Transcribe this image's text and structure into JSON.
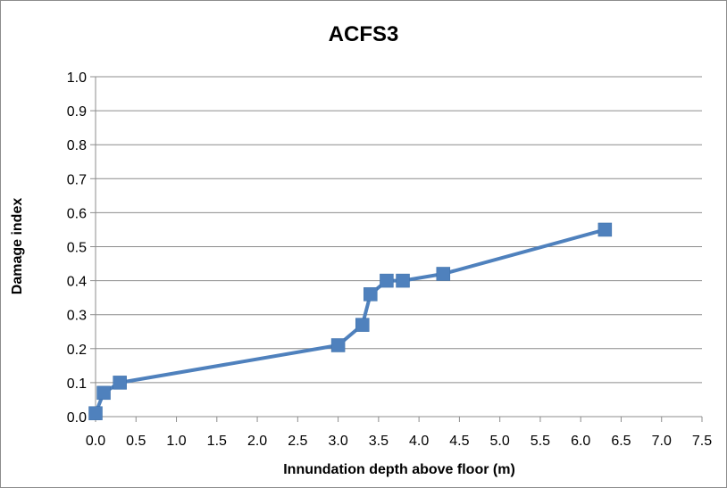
{
  "chart_data": {
    "type": "scatter",
    "title": "ACFS3",
    "xlabel": "Innundation depth above floor (m)",
    "ylabel": "Damage index",
    "xlim": [
      0,
      7.5
    ],
    "ylim": [
      0,
      1.0
    ],
    "x_ticks": [
      "0.0",
      "0.5",
      "1.0",
      "1.5",
      "2.0",
      "2.5",
      "3.0",
      "3.5",
      "4.0",
      "4.5",
      "5.0",
      "5.5",
      "6.0",
      "6.5",
      "7.0",
      "7.5"
    ],
    "y_ticks": [
      "0.0",
      "0.1",
      "0.2",
      "0.3",
      "0.4",
      "0.5",
      "0.6",
      "0.7",
      "0.8",
      "0.9",
      "1.0"
    ],
    "grid": "horizontal",
    "marker": "square",
    "line": "straight",
    "color": "#4f81bd",
    "series": [
      {
        "points": [
          {
            "x": 0.0,
            "y": 0.01
          },
          {
            "x": 0.1,
            "y": 0.07
          },
          {
            "x": 0.3,
            "y": 0.1
          },
          {
            "x": 3.0,
            "y": 0.21
          },
          {
            "x": 3.3,
            "y": 0.27
          },
          {
            "x": 3.4,
            "y": 0.36
          },
          {
            "x": 3.6,
            "y": 0.4
          },
          {
            "x": 3.8,
            "y": 0.4
          },
          {
            "x": 4.3,
            "y": 0.42
          },
          {
            "x": 6.3,
            "y": 0.55
          }
        ]
      }
    ]
  }
}
